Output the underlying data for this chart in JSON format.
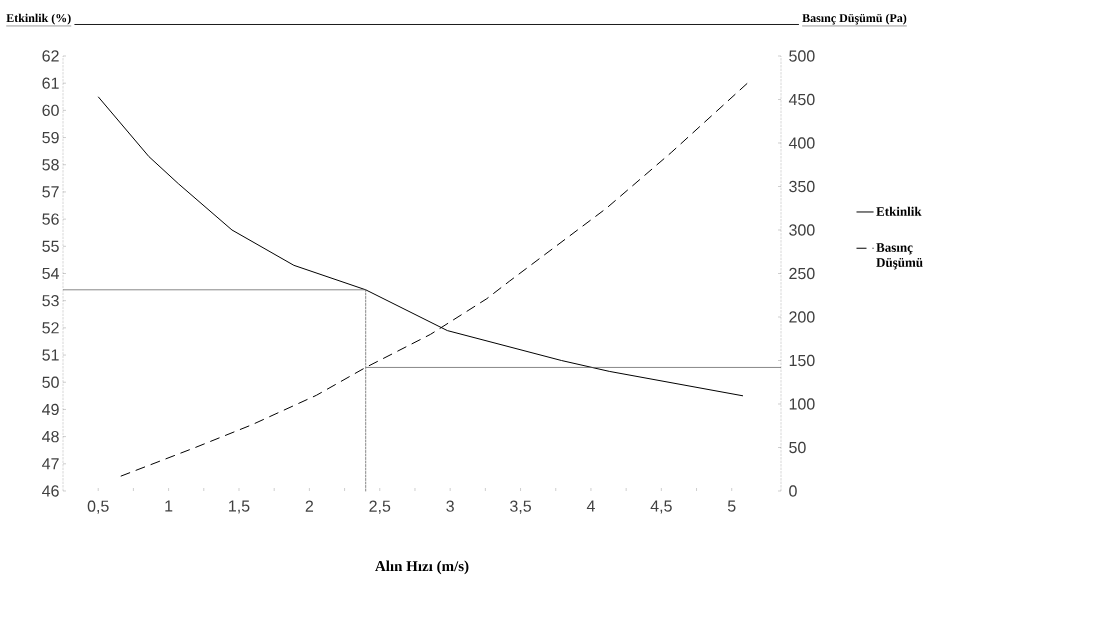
{
  "chart_data": {
    "type": "line",
    "ylabel": "Etkinlik (%)",
    "y2label": "Basınç Düşümü (Pa)",
    "xlabel": "Alın Hızı (m/s)",
    "xlim": [
      0.25,
      5.35
    ],
    "ylim": [
      46,
      62
    ],
    "y2lim": [
      0,
      500
    ],
    "xticks": [
      {
        "value": 0.5,
        "label": "0,5"
      },
      {
        "value": 0.75,
        "label": null
      },
      1,
      {
        "value": 1.25,
        "label": null
      },
      {
        "value": 1.5,
        "label": "1,5"
      },
      {
        "value": 1.75,
        "label": null
      },
      2,
      {
        "value": 2.25,
        "label": null
      },
      {
        "value": 2.5,
        "label": "2,5"
      },
      {
        "value": 2.75,
        "label": null
      },
      3,
      {
        "value": 3.25,
        "label": null
      },
      {
        "value": 3.5,
        "label": "3,5"
      },
      {
        "value": 3.75,
        "label": null
      },
      4,
      {
        "value": 4.25,
        "label": null
      },
      {
        "value": 4.5,
        "label": "4,5"
      },
      {
        "value": 4.75,
        "label": null
      },
      5
    ],
    "yticks": [
      46,
      47,
      48,
      49,
      50,
      51,
      52,
      53,
      54,
      55,
      56,
      57,
      58,
      59,
      60,
      61,
      62
    ],
    "y2ticks": [
      0,
      50,
      100,
      150,
      200,
      250,
      300,
      350,
      400,
      450,
      500
    ],
    "legend": "right",
    "series": [
      {
        "name": "Etkinlik",
        "color": "#000000",
        "line_style": "solid",
        "x": [
          0.5,
          0.86,
          1.07,
          1.45,
          1.89,
          2.4,
          2.98,
          3.79,
          4.13,
          5.08
        ],
        "values": [
          60.5,
          58.3,
          57.3,
          55.6,
          54.3,
          53.4,
          51.9,
          50.8,
          50.4,
          49.5
        ]
      },
      {
        "name": "Basınç Düşümü",
        "color": "#000000",
        "line_style": "dashed",
        "axis": "y2",
        "x": [
          0.66,
          1.19,
          1.59,
          2.05,
          2.4,
          2.86,
          3.26,
          3.42,
          4.11,
          4.57,
          5.12
        ],
        "values": [
          17,
          50,
          76,
          110,
          142,
          180,
          221,
          241,
          325,
          389,
          470
        ]
      },
      {
        "color": "#555555",
        "line_style": "solid",
        "x": [
          0.25,
          2.4
        ],
        "values": [
          53.4,
          53.4
        ]
      },
      {
        "color": "#555555",
        "line_style": "dotted",
        "x": [
          2.4,
          2.4
        ],
        "values": [
          46,
          53.4
        ]
      },
      {
        "color": "#555555",
        "line_style": "solid",
        "axis": "y2",
        "x": [
          2.4,
          5.35
        ],
        "values": [
          142,
          142
        ]
      }
    ]
  }
}
